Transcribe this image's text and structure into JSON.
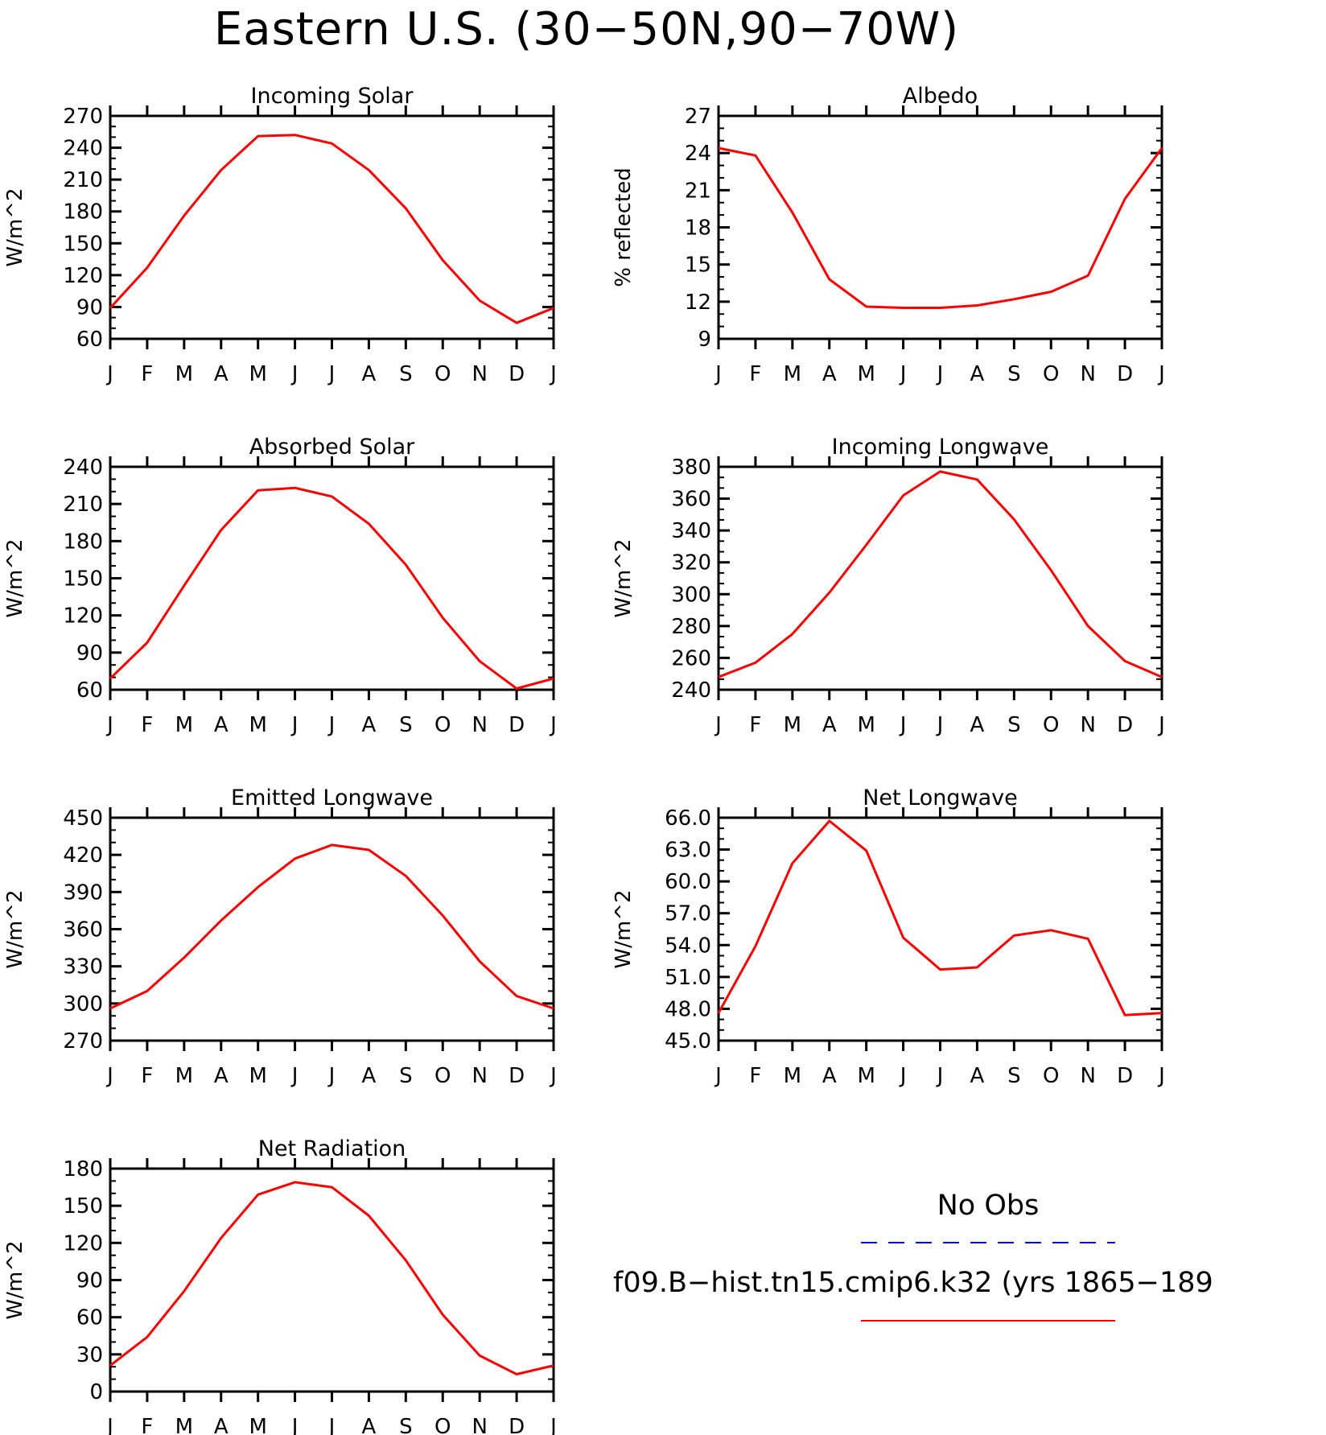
{
  "title": "Eastern U.S. (30−50N,90−70W)",
  "months": [
    "J",
    "F",
    "M",
    "A",
    "M",
    "J",
    "J",
    "A",
    "S",
    "O",
    "N",
    "D",
    "J"
  ],
  "colors": {
    "model": "#ff0000",
    "obs": "#0000ff",
    "axis": "#000000"
  },
  "legend": {
    "obs_label": "No Obs",
    "model_label": "f09.B−hist.tn15.cmip6.k32 (yrs 1865−189"
  },
  "chart_data": [
    {
      "type": "line",
      "title": "Incoming Solar",
      "ylabel": "W/m^2",
      "ylim": [
        60,
        270
      ],
      "yticks": [
        "60",
        "90",
        "120",
        "150",
        "180",
        "210",
        "240",
        "270"
      ],
      "categories": [
        "J",
        "F",
        "M",
        "A",
        "M",
        "J",
        "J",
        "A",
        "S",
        "O",
        "N",
        "D",
        "J"
      ],
      "series": [
        {
          "values": [
            89,
            127,
            176,
            219,
            251,
            252,
            244,
            219,
            183,
            134,
            96,
            75,
            89
          ]
        }
      ]
    },
    {
      "type": "line",
      "title": "Albedo",
      "ylabel": "% reflected",
      "ylim": [
        9,
        27
      ],
      "yticks": [
        "9",
        "12",
        "15",
        "18",
        "21",
        "24",
        "27"
      ],
      "categories": [
        "J",
        "F",
        "M",
        "A",
        "M",
        "J",
        "J",
        "A",
        "S",
        "O",
        "N",
        "D",
        "J"
      ],
      "series": [
        {
          "values": [
            24.4,
            23.8,
            19.2,
            13.8,
            11.6,
            11.5,
            11.5,
            11.7,
            12.2,
            12.8,
            14.1,
            20.3,
            24.4
          ]
        }
      ]
    },
    {
      "type": "line",
      "title": "Absorbed Solar",
      "ylabel": "W/m^2",
      "ylim": [
        60,
        240
      ],
      "yticks": [
        "60",
        "90",
        "120",
        "150",
        "180",
        "210",
        "240"
      ],
      "categories": [
        "J",
        "F",
        "M",
        "A",
        "M",
        "J",
        "J",
        "A",
        "S",
        "O",
        "N",
        "D",
        "J"
      ],
      "series": [
        {
          "values": [
            69,
            98,
            144,
            189,
            221,
            223,
            216,
            194,
            161,
            118,
            83,
            61,
            69
          ]
        }
      ]
    },
    {
      "type": "line",
      "title": "Incoming Longwave",
      "ylabel": "W/m^2",
      "ylim": [
        240,
        380
      ],
      "yticks": [
        "240",
        "260",
        "280",
        "300",
        "320",
        "340",
        "360",
        "380"
      ],
      "categories": [
        "J",
        "F",
        "M",
        "A",
        "M",
        "J",
        "J",
        "A",
        "S",
        "O",
        "N",
        "D",
        "J"
      ],
      "series": [
        {
          "values": [
            248,
            257,
            275,
            301,
            331,
            362,
            377,
            372,
            347,
            315,
            280,
            258,
            248
          ]
        }
      ]
    },
    {
      "type": "line",
      "title": "Emitted Longwave",
      "ylabel": "W/m^2",
      "ylim": [
        270,
        450
      ],
      "yticks": [
        "270",
        "300",
        "330",
        "360",
        "390",
        "420",
        "450"
      ],
      "categories": [
        "J",
        "F",
        "M",
        "A",
        "M",
        "J",
        "J",
        "A",
        "S",
        "O",
        "N",
        "D",
        "J"
      ],
      "series": [
        {
          "values": [
            296,
            310,
            337,
            367,
            394,
            417,
            428,
            424,
            403,
            371,
            334,
            306,
            296
          ]
        }
      ]
    },
    {
      "type": "line",
      "title": "Net Longwave",
      "ylabel": "W/m^2",
      "ylim": [
        45,
        66
      ],
      "yticks": [
        "45.0",
        "48.0",
        "51.0",
        "54.0",
        "57.0",
        "60.0",
        "63.0",
        "66.0"
      ],
      "categories": [
        "J",
        "F",
        "M",
        "A",
        "M",
        "J",
        "J",
        "A",
        "S",
        "O",
        "N",
        "D",
        "J"
      ],
      "series": [
        {
          "values": [
            47.6,
            53.9,
            61.7,
            65.7,
            62.9,
            54.7,
            51.7,
            51.9,
            54.9,
            55.4,
            54.6,
            47.4,
            47.6
          ]
        }
      ]
    },
    {
      "type": "line",
      "title": "Net Radiation",
      "ylabel": "W/m^2",
      "ylim": [
        0,
        180
      ],
      "yticks": [
        "0",
        "30",
        "60",
        "90",
        "120",
        "150",
        "180"
      ],
      "categories": [
        "J",
        "F",
        "M",
        "A",
        "M",
        "J",
        "J",
        "A",
        "S",
        "O",
        "N",
        "D",
        "J"
      ],
      "series": [
        {
          "values": [
            21,
            44,
            81,
            124,
            159,
            169,
            165,
            142,
            106,
            62,
            29,
            14,
            21
          ]
        }
      ]
    }
  ]
}
